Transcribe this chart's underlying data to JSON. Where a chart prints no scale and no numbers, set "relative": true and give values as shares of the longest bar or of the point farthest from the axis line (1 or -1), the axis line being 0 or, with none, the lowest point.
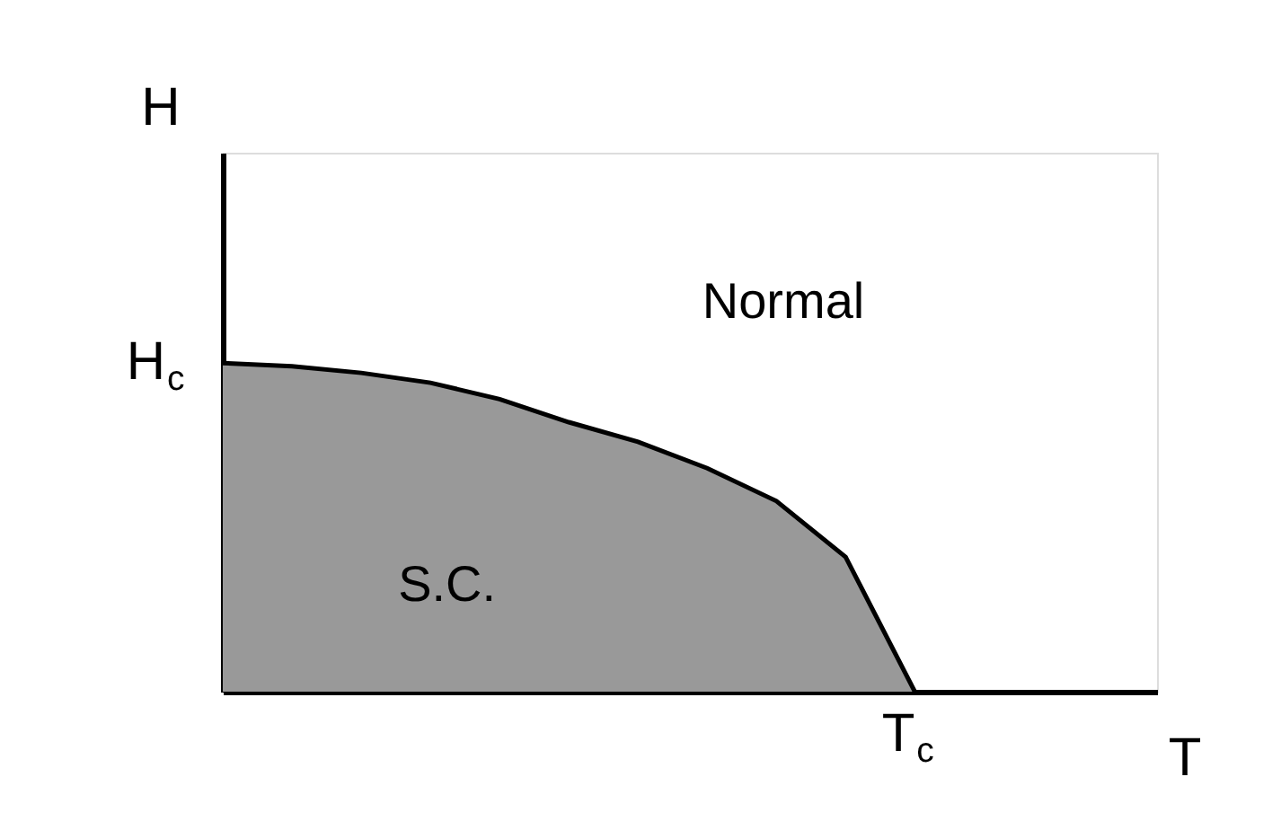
{
  "chart_data": {
    "type": "area",
    "relative": true,
    "xlabel": "T",
    "ylabel": "H",
    "tick_labels": false,
    "grid": false,
    "categories": [
      null,
      null,
      null,
      null,
      null,
      null,
      null,
      null,
      null,
      null,
      null
    ],
    "series": [
      {
        "color": "#999999",
        "values": [
          1,
          0.99,
          0.97,
          0.94,
          0.89,
          0.82,
          0.76,
          0.68,
          0.58,
          0.41,
          0
        ]
      }
    ],
    "annotations": [
      "H$_{c}$",
      "T$_{c}$",
      "Normal",
      "S.C."
    ]
  }
}
